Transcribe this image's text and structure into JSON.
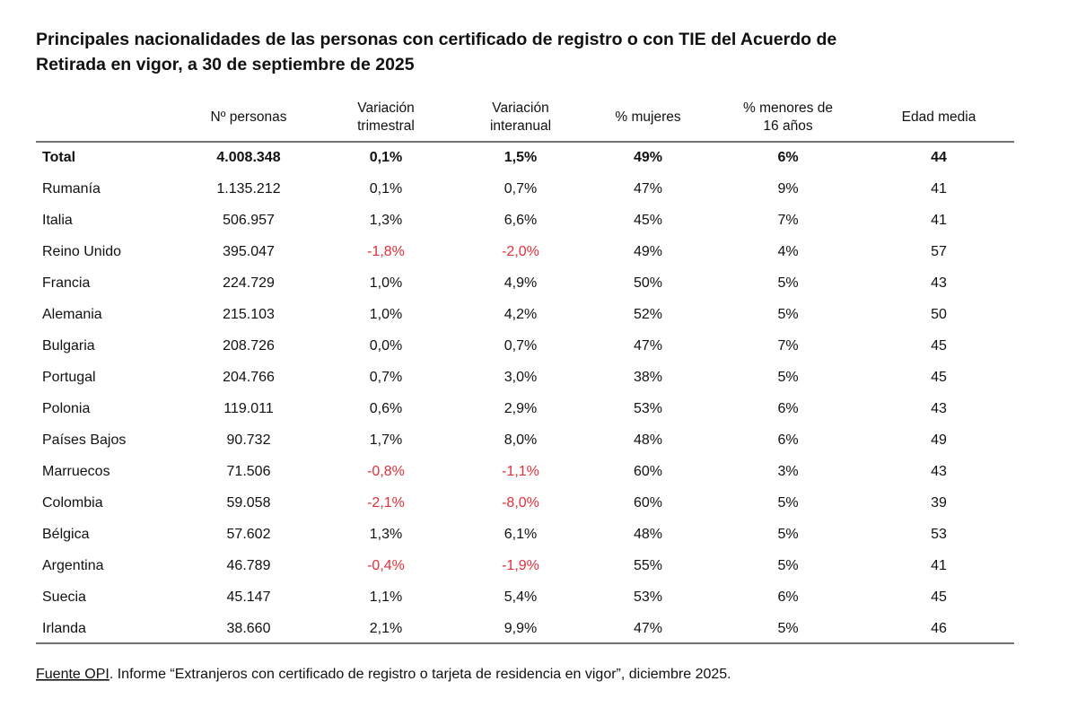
{
  "title": [
    "Principales nacionalidades de las personas con certificado de registro o con TIE del Acuerdo de",
    "Retirada en vigor, a 30 de septiembre de 2025"
  ],
  "table": {
    "columns": [
      [],
      [
        "Nº personas"
      ],
      [
        "Variación",
        "trimestral"
      ],
      [
        "Variación",
        "interanual"
      ],
      [
        "% mujeres"
      ],
      [
        "% menores de",
        "16 años"
      ],
      [
        "Edad media"
      ]
    ],
    "rows": [
      [
        "Total",
        "4.008.348",
        "0,1%",
        "1,5%",
        "49%",
        "6%",
        "44"
      ],
      [
        "Rumanía",
        "1.135.212",
        "0,1%",
        "0,7%",
        "47%",
        "9%",
        "41"
      ],
      [
        "Italia",
        "506.957",
        "1,3%",
        "6,6%",
        "45%",
        "7%",
        "41"
      ],
      [
        "Reino Unido",
        "395.047",
        "-1,8%",
        "-2,0%",
        "49%",
        "4%",
        "57"
      ],
      [
        "Francia",
        "224.729",
        "1,0%",
        "4,9%",
        "50%",
        "5%",
        "43"
      ],
      [
        "Alemania",
        "215.103",
        "1,0%",
        "4,2%",
        "52%",
        "5%",
        "50"
      ],
      [
        "Bulgaria",
        "208.726",
        "0,0%",
        "0,7%",
        "47%",
        "7%",
        "45"
      ],
      [
        "Portugal",
        "204.766",
        "0,7%",
        "3,0%",
        "38%",
        "5%",
        "45"
      ],
      [
        "Polonia",
        "119.011",
        "0,6%",
        "2,9%",
        "53%",
        "6%",
        "43"
      ],
      [
        "Países Bajos",
        "90.732",
        "1,7%",
        "8,0%",
        "48%",
        "6%",
        "49"
      ],
      [
        "Marruecos",
        "71.506",
        "-0,8%",
        "-1,1%",
        "60%",
        "3%",
        "43"
      ],
      [
        "Colombia",
        "59.058",
        "-2,1%",
        "-8,0%",
        "60%",
        "5%",
        "39"
      ],
      [
        "Bélgica",
        "57.602",
        "1,3%",
        "6,1%",
        "48%",
        "5%",
        "53"
      ],
      [
        "Argentina",
        "46.789",
        "-0,4%",
        "-1,9%",
        "55%",
        "5%",
        "41"
      ],
      [
        "Suecia",
        "45.147",
        "1,1%",
        "5,4%",
        "53%",
        "6%",
        "45"
      ],
      [
        "Irlanda",
        "38.660",
        "2,1%",
        "9,9%",
        "47%",
        "5%",
        "46"
      ]
    ]
  },
  "footnote": {
    "source": "Fuente OPI",
    "text": ". Informe “Extranjeros con certificado de registro o tarjeta de residencia en vigor”, diciembre 2025."
  }
}
